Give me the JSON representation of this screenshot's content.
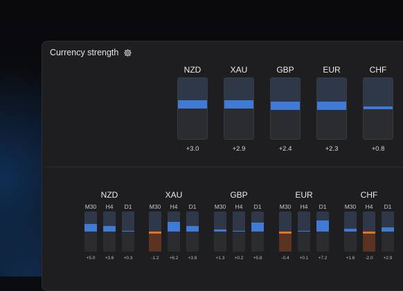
{
  "panel": {
    "title": "Currency strength",
    "settings_icon": "gear-icon"
  },
  "colors": {
    "positive": "#3f7ad6",
    "negative": "#5a3320",
    "negative_cap": "#e8731e"
  },
  "top": [
    {
      "name": "NZD",
      "value": "+3.0",
      "strength": 3.0
    },
    {
      "name": "XAU",
      "value": "+2.9",
      "strength": 2.9
    },
    {
      "name": "GBP",
      "value": "+2.4",
      "strength": 2.4
    },
    {
      "name": "EUR",
      "value": "+2.3",
      "strength": 2.3
    },
    {
      "name": "CHF",
      "value": "+0.8",
      "strength": 0.8
    }
  ],
  "groups": [
    {
      "name": "NZD",
      "timeframes": [
        {
          "label": "M30",
          "value": "+5.0",
          "strength": 5.0
        },
        {
          "label": "H4",
          "value": "+3.6",
          "strength": 3.6
        },
        {
          "label": "D1",
          "value": "+0.3",
          "strength": 0.3
        }
      ]
    },
    {
      "name": "XAU",
      "timeframes": [
        {
          "label": "M30",
          "value": "-1.2",
          "strength": -1.2
        },
        {
          "label": "H4",
          "value": "+6.2",
          "strength": 6.2
        },
        {
          "label": "D1",
          "value": "+3.8",
          "strength": 3.8
        }
      ]
    },
    {
      "name": "GBP",
      "timeframes": [
        {
          "label": "M30",
          "value": "+1.3",
          "strength": 1.3
        },
        {
          "label": "H4",
          "value": "+0.2",
          "strength": 0.2
        },
        {
          "label": "D1",
          "value": "+5.8",
          "strength": 5.8
        }
      ]
    },
    {
      "name": "EUR",
      "timeframes": [
        {
          "label": "M30",
          "value": "-0.4",
          "strength": -0.4
        },
        {
          "label": "H4",
          "value": "+0.1",
          "strength": 0.1
        },
        {
          "label": "D1",
          "value": "+7.2",
          "strength": 7.2
        }
      ]
    },
    {
      "name": "CHF",
      "timeframes": [
        {
          "label": "M30",
          "value": "+1.6",
          "strength": 1.6
        },
        {
          "label": "H4",
          "value": "-2.0",
          "strength": -2.0
        },
        {
          "label": "D1",
          "value": "+2.9",
          "strength": 2.9
        }
      ]
    }
  ]
}
